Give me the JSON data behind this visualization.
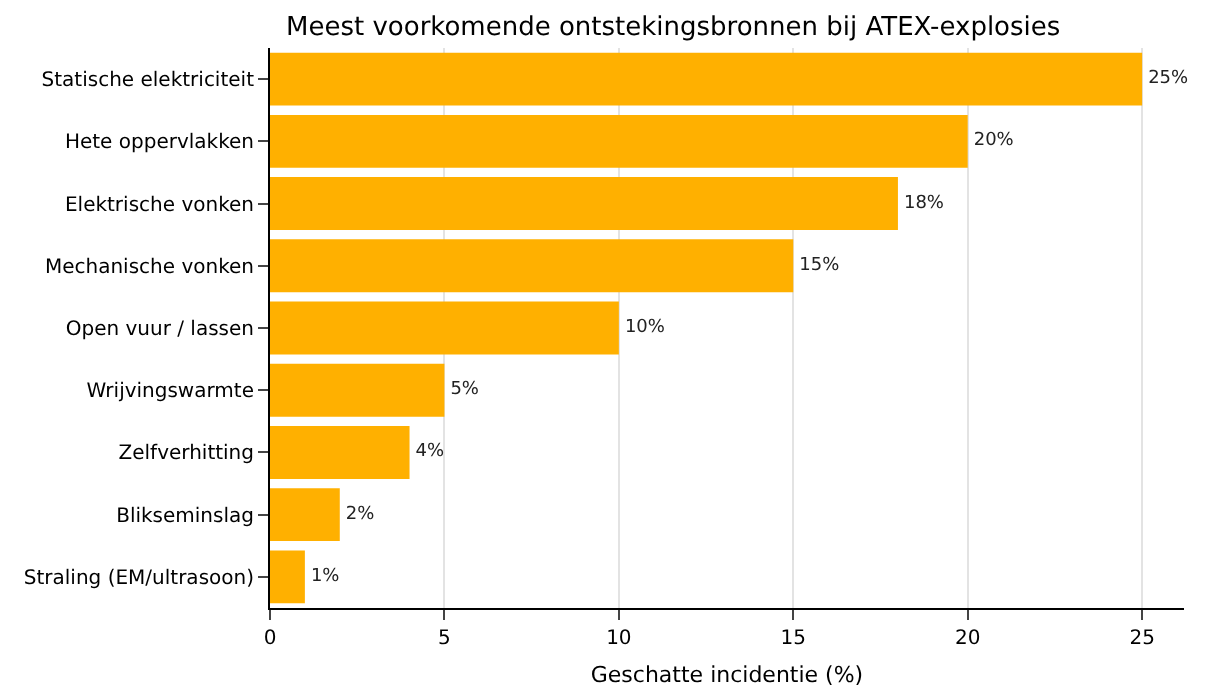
{
  "chart_data": {
    "type": "bar",
    "orientation": "horizontal",
    "title": "Meest voorkomende ontstekingsbronnen bij ATEX-explosies",
    "xlabel": "Geschatte incidentie (%)",
    "categories": [
      "Statische elektriciteit",
      "Hete oppervlakken",
      "Elektrische vonken",
      "Mechanische vonken",
      "Open vuur / lassen",
      "Wrijvingswarmte",
      "Zelfverhitting",
      "Blikseminslag",
      "Straling (EM/ultrasoon)"
    ],
    "values": [
      25,
      20,
      18,
      15,
      10,
      5,
      4,
      2,
      1
    ],
    "value_labels": [
      "25%",
      "20%",
      "18%",
      "15%",
      "10%",
      "5%",
      "4%",
      "2%",
      "1%"
    ],
    "color": "#ffb000",
    "xlim": [
      0,
      26.2
    ],
    "xticks": [
      0,
      5,
      10,
      15,
      20,
      25
    ],
    "grid": "x"
  }
}
